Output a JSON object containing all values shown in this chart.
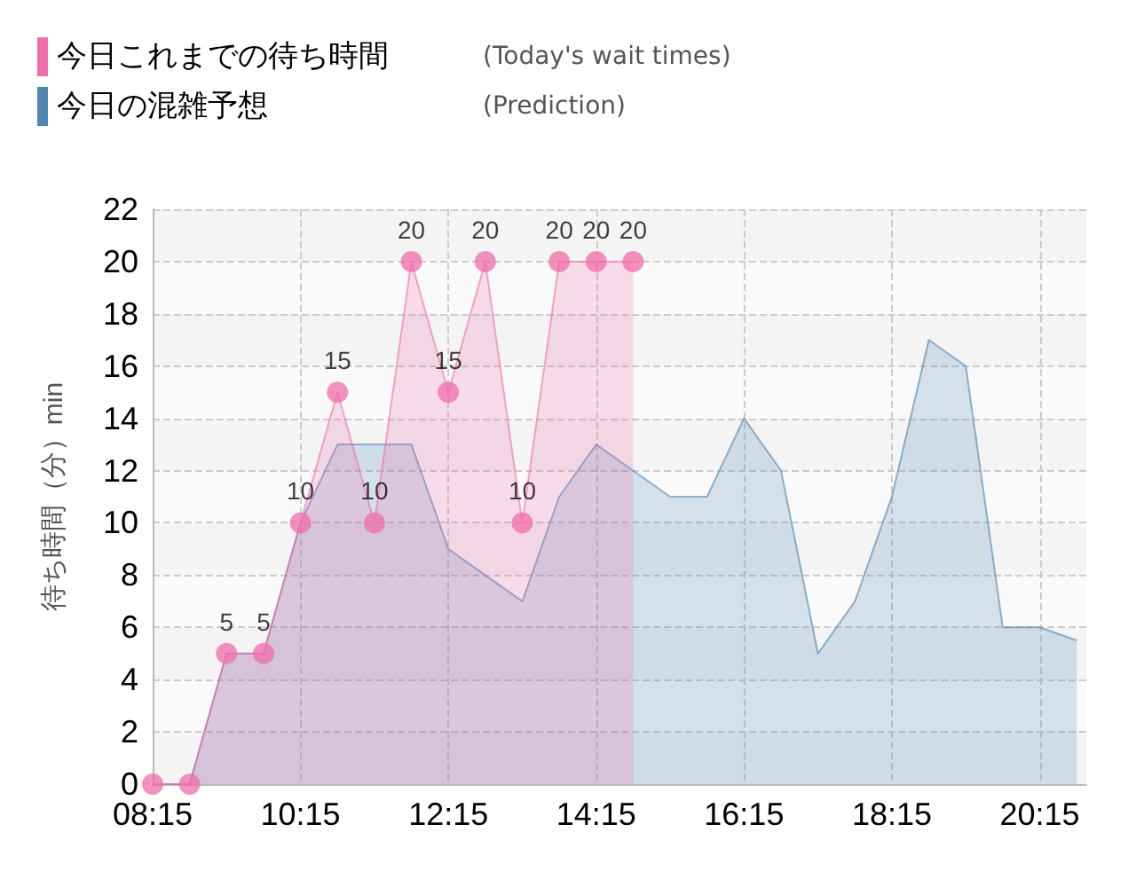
{
  "chart_data": {
    "type": "area",
    "ylabel": "待ち時間（分）min",
    "annotations": [
      "(Today's wait times)",
      "(Prediction)"
    ],
    "series": [
      {
        "name": "今日これまでの待ち時間",
        "color": "#f06eaa",
        "marker": "circle",
        "value_labels": [
          null,
          null,
          "5",
          "5",
          "10",
          "15",
          "10",
          "20",
          "15",
          "20",
          "10",
          "20",
          "20",
          "20"
        ],
        "x": [
          8.25,
          8.75,
          9.25,
          9.75,
          10.25,
          10.75,
          11.25,
          11.75,
          12.25,
          12.75,
          13.25,
          13.75,
          14.25,
          14.75
        ],
        "values": [
          0,
          0,
          5,
          5,
          10,
          15,
          10,
          20,
          15,
          20,
          10,
          20,
          20,
          20
        ]
      },
      {
        "name": "今日の混雑予想",
        "color": "#4f86b0",
        "marker": "none",
        "x": [
          8.25,
          8.75,
          9.25,
          9.75,
          10.25,
          10.75,
          11.25,
          11.75,
          12.25,
          12.75,
          13.25,
          13.75,
          14.25,
          14.75,
          15.25,
          15.75,
          16.25,
          16.75,
          17.25,
          17.75,
          18.25,
          18.75,
          19.25,
          19.75,
          20.25,
          20.75
        ],
        "values": [
          0,
          0,
          5,
          5,
          10,
          13,
          13,
          13,
          9,
          8,
          7,
          11,
          13,
          12,
          11,
          11,
          14,
          12,
          5,
          7,
          11,
          17,
          16,
          6,
          6,
          5.5
        ]
      }
    ],
    "xlim": [
      8.25,
      20.88
    ],
    "xticks": [
      {
        "value": 8.25,
        "label": "08:15"
      },
      {
        "value": 10.25,
        "label": "10:15"
      },
      {
        "value": 12.25,
        "label": "12:15"
      },
      {
        "value": 14.25,
        "label": "14:15"
      },
      {
        "value": 16.25,
        "label": "16:15"
      },
      {
        "value": 18.25,
        "label": "18:15"
      },
      {
        "value": 20.25,
        "label": "20:15"
      }
    ],
    "ylim": [
      0,
      22
    ],
    "yticks": [
      0,
      2,
      4,
      6,
      8,
      10,
      12,
      14,
      16,
      18,
      20,
      22
    ],
    "grid": true,
    "legend": "top left"
  }
}
